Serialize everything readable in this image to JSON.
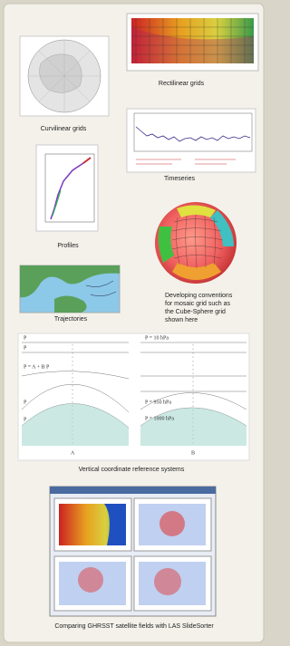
{
  "captions": {
    "rectilinear": "Rectilinear grids",
    "curvilinear": "Curvilinear grids",
    "timeseries": "Timeseries",
    "profiles": "Profiles",
    "mosaic": [
      "Developing conventions",
      "for mosaic grid such as",
      "the Cube-Sphere grid",
      "shown here"
    ],
    "trajectories": "Trajectories",
    "vertical": "Vertical coordinate reference systems",
    "las": "Comparing GHRSST satellite fields with LAS SlideSorter"
  },
  "vertical_diagram": {
    "left": {
      "top": "P",
      "second": "P",
      "middle": "P = A + B P",
      "lower": "P",
      "bottom": "P",
      "name": "A"
    },
    "right": {
      "top": "P = 10 hPa",
      "lower": "P = 950 hPa",
      "bottom": "P = 1000 hPa",
      "name": "B"
    }
  }
}
